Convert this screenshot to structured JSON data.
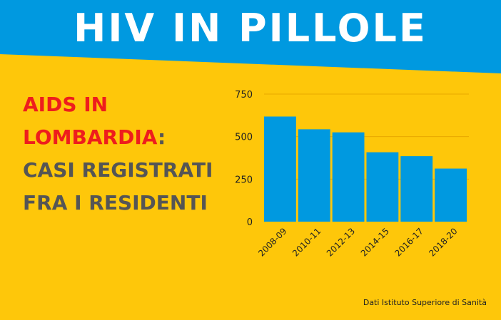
{
  "banner": {
    "title": "HIV IN PILLOLE",
    "color": "#0099e0"
  },
  "headline": {
    "line1_red": "AIDS IN",
    "line2_red": "LOMBARDIA",
    "line2_colon": ":",
    "line3": "CASI REGISTRATI",
    "line4": "FRA I RESIDENTI"
  },
  "source": "Dati Istituto Superiore di Sanità",
  "colors": {
    "background": "#fec70a",
    "bar": "#0099e0",
    "red": "#ee1d1d",
    "gray": "#555555"
  },
  "chart_data": {
    "type": "bar",
    "categories": [
      "2008-09",
      "2010-11",
      "2012-13",
      "2014-15",
      "2016-17",
      "2018-20"
    ],
    "values": [
      618,
      543,
      525,
      408,
      385,
      312
    ],
    "title": "",
    "xlabel": "",
    "ylabel": "",
    "ylim": [
      0,
      750
    ],
    "yticks": [
      0,
      250,
      500,
      750
    ],
    "grid": true
  }
}
